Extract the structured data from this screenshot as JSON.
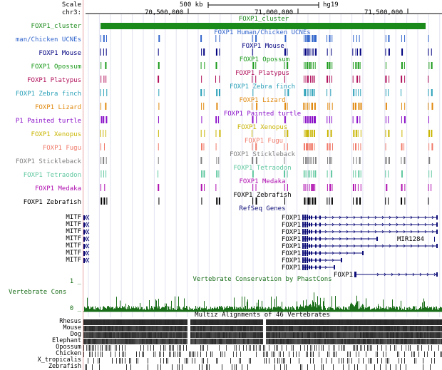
{
  "ruler": {
    "scale_label": "Scale",
    "chrom_label": "chr3:",
    "scale_bar": "500 kb",
    "assembly": "hg19",
    "ticks": [
      {
        "label": "70,500,000"
      },
      {
        "label": "71,000,000"
      },
      {
        "label": "71,500,000"
      }
    ]
  },
  "tracks": [
    {
      "key": "cluster",
      "label": "FOXP1_cluster",
      "title": "FOXP1_cluster",
      "color": "#1a8a1a"
    },
    {
      "key": "human",
      "label": "man/Chicken UCNEs",
      "title": "FOXP1 Human/Chicken UCNEs",
      "color": "#3366cc"
    },
    {
      "key": "mouse",
      "label": "FOXP1 Mouse",
      "title": "FOXP1 Mouse",
      "color": "#000080"
    },
    {
      "key": "opossum",
      "label": "FOXP1 Opossum",
      "title": "FOXP1 Opossum",
      "color": "#1a9a1a"
    },
    {
      "key": "platypus",
      "label": "FOXP1 Platypus",
      "title": "FOXP1 Platypus",
      "color": "#b0105a"
    },
    {
      "key": "zebrafinch",
      "label": "FOXP1 Zebra finch",
      "title": "FOXP1 Zebra finch",
      "color": "#2aa0b8"
    },
    {
      "key": "lizard",
      "label": "FOXP1 Lizard",
      "title": "FOXP1 Lizard",
      "color": "#e08a10"
    },
    {
      "key": "turtle",
      "label": "P1 Painted turtle",
      "title": "FOXP1 Painted turtle",
      "color": "#8a10c8"
    },
    {
      "key": "xenopus",
      "label": "FOXP1 Xenopus",
      "title": "FOXP1 Xenopus",
      "color": "#c8b400"
    },
    {
      "key": "fugu",
      "label": "FOXP1 Fugu",
      "title": "FOXP1 Fugu",
      "color": "#f07a6a"
    },
    {
      "key": "stickleback",
      "label": "FOXP1 Stickleback",
      "title": "FOXP1 Stickleback",
      "color": "#808080"
    },
    {
      "key": "tetraodon",
      "label": "FOXP1 Tetraodon",
      "title": "FOXP1 Tetraodon",
      "color": "#60c8a0"
    },
    {
      "key": "medaka",
      "label": "FOXP1 Medaka",
      "title": "FOXP1 Medaka",
      "color": "#b010b0"
    },
    {
      "key": "zebrafish",
      "label": "FOXP1 Zebrafish",
      "title": "FOXP1 Zebrafish",
      "color": "#000000"
    }
  ],
  "refseq": {
    "title": "RefSeq Genes",
    "color": "#0c0c78",
    "genes": [
      {
        "left": "MITF",
        "right": "FOXP1"
      },
      {
        "left": "MITF",
        "right": "FOXP1"
      },
      {
        "left": "MITF",
        "right": "FOXP1"
      },
      {
        "left": "MITF",
        "right": "FOXP1",
        "extra": "MIR1284"
      },
      {
        "left": "MITF",
        "right": "FOXP1"
      },
      {
        "left": "MITF",
        "right": "FOXP1"
      },
      {
        "left": "MITF",
        "right": "FOXP1"
      },
      {
        "left": "",
        "right": "FOXP1"
      },
      {
        "left": "",
        "right": "FOXP1"
      }
    ]
  },
  "conservation": {
    "title": "Vertebrate Conservation by PhastCons",
    "label": "Vertebrate Cons",
    "max_label": "1 _",
    "min_label": "0 _",
    "color": "#1a6e1a"
  },
  "multiz": {
    "title": "Multiz Alignments of 46 Vertebrates",
    "species": [
      "Rhesus",
      "Mouse",
      "Dog",
      "Elephant",
      "Opossum",
      "Chicken",
      "X_tropicalis",
      "Zebrafish"
    ]
  }
}
